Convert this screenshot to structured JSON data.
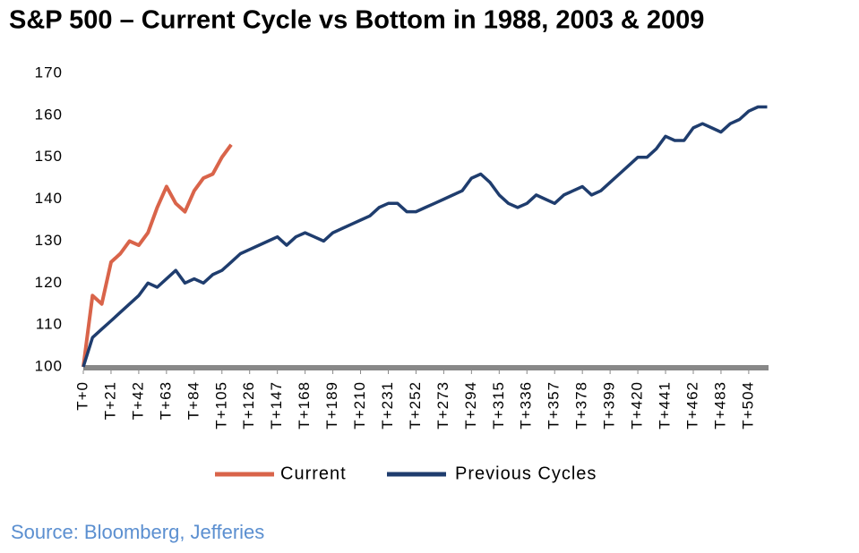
{
  "chart_data": {
    "type": "line",
    "title": "S&P 500 – Current Cycle vs Bottom in 1988, 2003 & 2009",
    "source": "Source: Bloomberg, Jefferies",
    "x": [
      0,
      7,
      14,
      21,
      28,
      35,
      42,
      49,
      56,
      63,
      70,
      77,
      84,
      91,
      98,
      105,
      112,
      119,
      126,
      133,
      140,
      147,
      154,
      161,
      168,
      175,
      182,
      189,
      196,
      203,
      210,
      217,
      224,
      231,
      238,
      245,
      252,
      259,
      266,
      273,
      280,
      287,
      294,
      301,
      308,
      315,
      322,
      329,
      336,
      343,
      350,
      357,
      364,
      371,
      378,
      385,
      392,
      399,
      406,
      413,
      420,
      427,
      434,
      441,
      448,
      455,
      462,
      469,
      476,
      483,
      490,
      497,
      504,
      511,
      518
    ],
    "series": [
      {
        "name": "Current",
        "color": "#d9644a",
        "values": [
          100,
          117,
          115,
          125,
          127,
          130,
          129,
          132,
          138,
          143,
          139,
          137,
          142,
          145,
          146,
          150,
          153,
          null,
          null,
          null,
          null,
          null,
          null,
          null,
          null,
          null,
          null,
          null,
          null,
          null,
          null,
          null,
          null,
          null,
          null,
          null,
          null,
          null,
          null,
          null,
          null,
          null,
          null,
          null,
          null,
          null,
          null,
          null,
          null,
          null,
          null,
          null,
          null,
          null,
          null,
          null,
          null,
          null,
          null,
          null,
          null,
          null,
          null,
          null,
          null,
          null,
          null,
          null,
          null,
          null,
          null,
          null,
          null,
          null,
          null
        ]
      },
      {
        "name": "Previous Cycles",
        "color": "#1f3d6e",
        "values": [
          100,
          107,
          109,
          111,
          113,
          115,
          117,
          120,
          119,
          121,
          123,
          120,
          121,
          120,
          122,
          123,
          125,
          127,
          128,
          129,
          130,
          131,
          129,
          131,
          132,
          131,
          130,
          132,
          133,
          134,
          135,
          136,
          138,
          139,
          139,
          137,
          137,
          138,
          139,
          140,
          141,
          142,
          145,
          146,
          144,
          141,
          139,
          138,
          139,
          141,
          140,
          139,
          141,
          142,
          143,
          141,
          142,
          144,
          146,
          148,
          150,
          150,
          152,
          155,
          154,
          154,
          157,
          158,
          157,
          156,
          158,
          159,
          161,
          162,
          162
        ]
      }
    ],
    "xlim": [
      0,
      519
    ],
    "ylim": [
      100,
      170
    ],
    "yticks": [
      100,
      110,
      120,
      130,
      140,
      150,
      160,
      170
    ],
    "xticks": [
      {
        "value": 0,
        "label": "T+0"
      },
      {
        "value": 21,
        "label": "T+21"
      },
      {
        "value": 42,
        "label": "T+42"
      },
      {
        "value": 63,
        "label": "T+63"
      },
      {
        "value": 84,
        "label": "T+84"
      },
      {
        "value": 105,
        "label": "T+105"
      },
      {
        "value": 126,
        "label": "T+126"
      },
      {
        "value": 147,
        "label": "T+147"
      },
      {
        "value": 168,
        "label": "T+168"
      },
      {
        "value": 189,
        "label": "T+189"
      },
      {
        "value": 210,
        "label": "T+210"
      },
      {
        "value": 231,
        "label": "T+231"
      },
      {
        "value": 252,
        "label": "T+252"
      },
      {
        "value": 273,
        "label": "T+273"
      },
      {
        "value": 294,
        "label": "T+294"
      },
      {
        "value": 315,
        "label": "T+315"
      },
      {
        "value": 336,
        "label": "T+336"
      },
      {
        "value": 357,
        "label": "T+357"
      },
      {
        "value": 378,
        "label": "T+378"
      },
      {
        "value": 399,
        "label": "T+399"
      },
      {
        "value": 420,
        "label": "T+420"
      },
      {
        "value": 441,
        "label": "T+441"
      },
      {
        "value": 462,
        "label": "T+462"
      },
      {
        "value": 483,
        "label": "T+483"
      },
      {
        "value": 504,
        "label": "T+504"
      }
    ],
    "grid": false
  }
}
